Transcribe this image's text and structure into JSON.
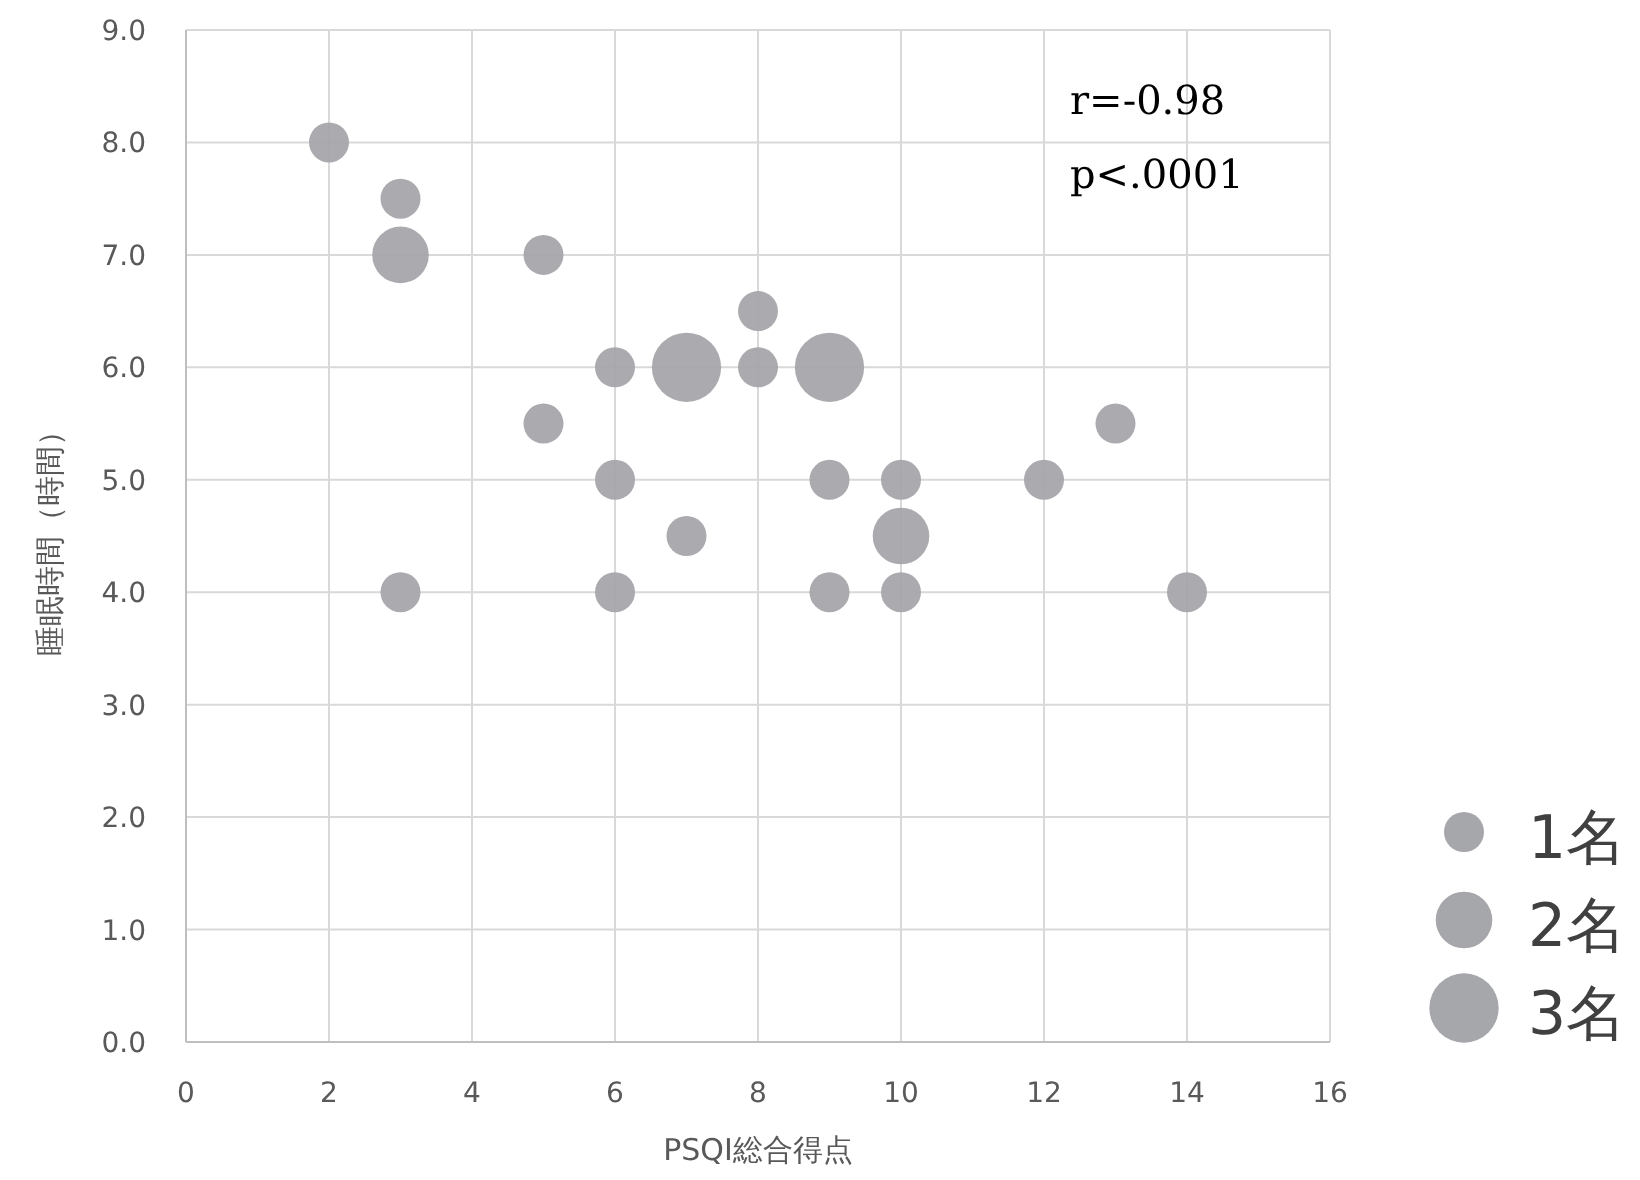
{
  "chart_data": {
    "type": "bubble",
    "xlabel": "PSQI総合得点",
    "ylabel": "睡眠時間（時間）",
    "x": [
      2,
      3,
      3,
      5,
      8,
      6,
      7,
      8,
      9,
      5,
      13,
      6,
      9,
      10,
      12,
      7,
      10,
      3,
      6,
      9,
      10,
      14
    ],
    "values": [
      8,
      7.5,
      7,
      7,
      6.5,
      6,
      6,
      6,
      6,
      5.5,
      5.5,
      5,
      5,
      5,
      5,
      4.5,
      4.5,
      4,
      4,
      4,
      4,
      4
    ],
    "sizes": [
      1,
      1,
      2,
      1,
      1,
      1,
      3,
      1,
      3,
      1,
      1,
      1,
      1,
      1,
      1,
      1,
      2,
      1,
      1,
      1,
      1,
      1
    ],
    "size_legend": [
      {
        "value": 1,
        "label": "1名"
      },
      {
        "value": 2,
        "label": "2名"
      },
      {
        "value": 3,
        "label": "3名"
      }
    ],
    "color": "#a6a7ab",
    "xlim": [
      0,
      16
    ],
    "xticks": [
      0,
      2,
      4,
      6,
      8,
      10,
      12,
      14,
      16
    ],
    "ylim": [
      0,
      9
    ],
    "yticks": [
      {
        "value": 0,
        "label": "0.0"
      },
      {
        "value": 1,
        "label": "1.0"
      },
      {
        "value": 2,
        "label": "2.0"
      },
      {
        "value": 3,
        "label": "3.0"
      },
      {
        "value": 4,
        "label": "4.0"
      },
      {
        "value": 5,
        "label": "5.0"
      },
      {
        "value": 6,
        "label": "6.0"
      },
      {
        "value": 7,
        "label": "7.0"
      },
      {
        "value": 8,
        "label": "8.0"
      },
      {
        "value": 9,
        "label": "9.0"
      }
    ],
    "grid": true,
    "annotations": [
      "r=-0.98",
      "p<.0001"
    ]
  }
}
